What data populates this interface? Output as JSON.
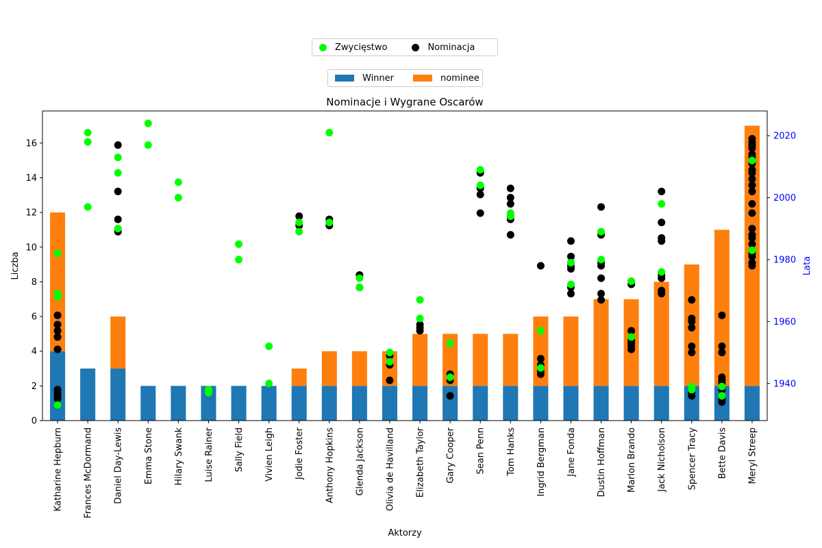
{
  "chart_data": {
    "type": "bar",
    "title": "Nominacje i Wygrane Oscarów",
    "xlabel": "Aktorzy",
    "ylabel": "Liczba",
    "y2label": "Lata",
    "ylim": [
      0,
      17.85
    ],
    "y2lim": [
      1928,
      2028
    ],
    "yticks": [
      0,
      2,
      4,
      6,
      8,
      10,
      12,
      14,
      16
    ],
    "y2ticks": [
      1940,
      1960,
      1980,
      2000,
      2020
    ],
    "stacked": true,
    "grid": false,
    "categories": [
      "Katharine Hepburn",
      "Frances McDormand",
      "Daniel Day-Lewis",
      "Emma Stone",
      "Hilary Swank",
      "Luise Rainer",
      "Sally Field",
      "Vivien Leigh",
      "Jodie Foster",
      "Anthony Hopkins",
      "Glenda Jackson",
      "Olivia de Havilland",
      "Elizabeth Taylor",
      "Gary Cooper",
      "Sean Penn",
      "Tom Hanks",
      "Ingrid Bergman",
      "Jane Fonda",
      "Dustin Hoffman",
      "Marlon Brando",
      "Jack Nicholson",
      "Spencer Tracy",
      "Bette Davis",
      "Meryl Streep"
    ],
    "series": [
      {
        "name": "Winner",
        "color": "#1f77b4",
        "values": [
          4,
          3,
          3,
          2,
          2,
          2,
          2,
          2,
          2,
          2,
          2,
          2,
          2,
          2,
          2,
          2,
          2,
          2,
          2,
          2,
          2,
          2,
          2,
          2
        ]
      },
      {
        "name": "nominee",
        "color": "#ff7f0e",
        "values": [
          8,
          0,
          3,
          0,
          0,
          0,
          0,
          0,
          1,
          2,
          2,
          2,
          3,
          3,
          3,
          3,
          4,
          4,
          5,
          5,
          6,
          7,
          9,
          15
        ]
      }
    ],
    "scatter_legend": [
      {
        "name": "Zwycięstwo",
        "color": "#00ff00"
      },
      {
        "name": "Nominacja",
        "color": "#000000"
      }
    ],
    "scatter": {
      "nominations": [
        [
          1935,
          1936,
          1937,
          1938,
          1951,
          1955,
          1957,
          1959,
          1962,
          1933
        ],
        [],
        [
          1989,
          1993,
          2002,
          2017
        ],
        [],
        [],
        [],
        [],
        [],
        [
          1991,
          1994
        ],
        [
          1991,
          1992,
          1993
        ],
        [
          1971,
          1975
        ],
        [
          1941,
          1946,
          1949
        ],
        [
          1957,
          1958,
          1959
        ],
        [
          1936,
          1941,
          1943
        ],
        [
          1995,
          2001,
          2003,
          2008
        ],
        [
          1988,
          1993,
          1994,
          1998,
          2000,
          2003
        ],
        [
          1943,
          1944,
          1945,
          1946,
          1948,
          1978
        ],
        [
          1969,
          1971,
          1977,
          1978,
          1979,
          1981,
          1986
        ],
        [
          1967,
          1969,
          1974,
          1979,
          1988,
          1997,
          1978
        ],
        [
          1951,
          1952,
          1953,
          1954,
          1957,
          1972,
          1973
        ],
        [
          1969,
          1970,
          1974,
          1975,
          1986,
          1987,
          1992,
          2002
        ],
        [
          1936,
          1937,
          1938,
          1950,
          1952,
          1958,
          1960,
          1961,
          1967
        ],
        [
          1934,
          1935,
          1936,
          1938,
          1939,
          1940,
          1941,
          1942,
          1950,
          1952,
          1962
        ],
        [
          1978,
          1979,
          1981,
          1982,
          1983,
          1985,
          1987,
          1988,
          1990,
          1995,
          1998,
          2002,
          2004,
          2006,
          2008,
          2009,
          2011,
          2012,
          2013,
          2014,
          2016,
          2017,
          2018,
          2019
        ]
      ],
      "wins": [
        [
          1933,
          1968,
          1969,
          1982
        ],
        [
          1997,
          2018,
          2021
        ],
        [
          1990,
          2008,
          2013
        ],
        [
          2017,
          2024
        ],
        [
          2000,
          2005
        ],
        [
          1937,
          1938
        ],
        [
          1980,
          1985
        ],
        [
          1940,
          1952
        ],
        [
          1989,
          1992
        ],
        [
          1992,
          2021
        ],
        [
          1971,
          1974
        ],
        [
          1947,
          1950
        ],
        [
          1961,
          1967
        ],
        [
          1942,
          1953
        ],
        [
          2004,
          2009
        ],
        [
          1994,
          1995
        ],
        [
          1945,
          1957
        ],
        [
          1972,
          1979
        ],
        [
          1980,
          1989
        ],
        [
          1955,
          1973
        ],
        [
          1976,
          1998
        ],
        [
          1938,
          1939
        ],
        [
          1936,
          1939
        ],
        [
          1983,
          2012
        ]
      ]
    }
  }
}
